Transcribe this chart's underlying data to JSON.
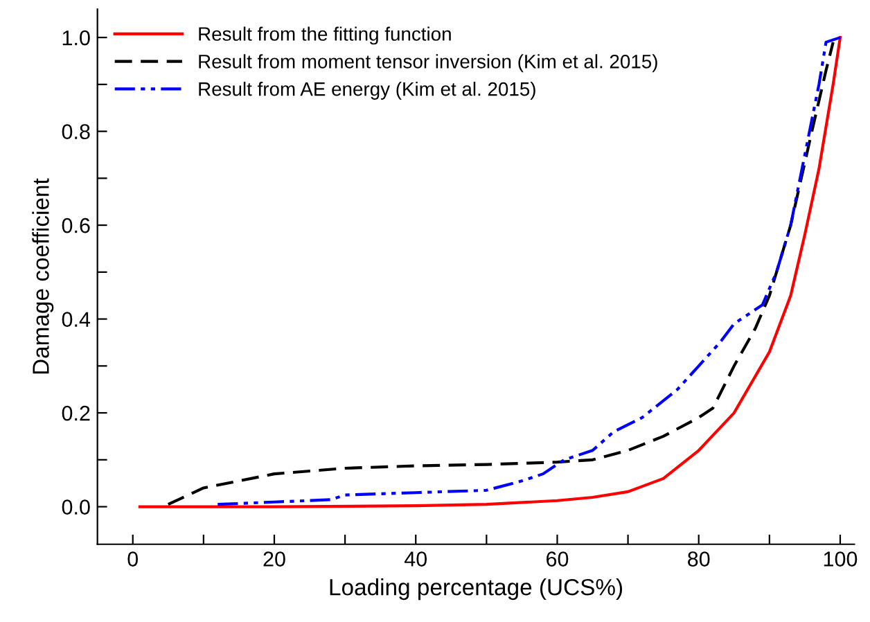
{
  "chart_data": {
    "type": "line",
    "xlabel": "Loading percentage (UCS%)",
    "ylabel": "Damage coefficient",
    "xlim": [
      -5,
      102
    ],
    "ylim": [
      -0.08,
      1.06
    ],
    "xticks": [
      0,
      {
        "value": 10,
        "label": null
      },
      20,
      {
        "value": 30,
        "label": null
      },
      40,
      {
        "value": 50,
        "label": null
      },
      60,
      {
        "value": 70,
        "label": null
      },
      80,
      {
        "value": 90,
        "label": null
      },
      100
    ],
    "yticks": [
      {
        "value": 0,
        "label": "0.0"
      },
      {
        "value": 0.1,
        "label": null
      },
      {
        "value": 0.2,
        "label": "0.2"
      },
      {
        "value": 0.3,
        "label": null
      },
      {
        "value": 0.4,
        "label": "0.4"
      },
      {
        "value": 0.5,
        "label": null
      },
      {
        "value": 0.6,
        "label": "0.6"
      },
      {
        "value": 0.7,
        "label": null
      },
      {
        "value": 0.8,
        "label": "0.8"
      },
      {
        "value": 0.9,
        "label": null
      },
      {
        "value": 1.0,
        "label": "1.0"
      }
    ],
    "grid": false,
    "legend": "top left",
    "series": [
      {
        "name": "Result from the fitting function",
        "color": "#ff0000",
        "line_style": "solid",
        "x": [
          1,
          20,
          40,
          50,
          60,
          65,
          70,
          75,
          80,
          85,
          90,
          93,
          95,
          97,
          99,
          100
        ],
        "values": [
          0,
          0,
          0.002,
          0.005,
          0.013,
          0.02,
          0.032,
          0.06,
          0.12,
          0.2,
          0.33,
          0.45,
          0.58,
          0.72,
          0.9,
          1.0
        ]
      },
      {
        "name": "Result from moment tensor inversion (Kim et al. 2015)",
        "color": "#000000",
        "line_style": "dashed",
        "x": [
          5,
          10,
          20,
          30,
          40,
          50,
          60,
          65,
          70,
          75,
          80,
          82,
          85,
          88,
          90,
          93,
          96,
          98,
          99
        ],
        "values": [
          0.005,
          0.04,
          0.07,
          0.082,
          0.087,
          0.09,
          0.095,
          0.1,
          0.12,
          0.15,
          0.19,
          0.21,
          0.3,
          0.38,
          0.45,
          0.6,
          0.8,
          0.93,
          0.99
        ]
      },
      {
        "name": "Result from AE energy (Kim et al. 2015)",
        "color": "#0000ff",
        "line_style": "dashdot",
        "x": [
          12,
          20,
          28,
          30,
          40,
          50,
          55,
          58,
          61,
          65,
          68,
          72,
          77,
          80,
          83,
          85,
          89,
          91,
          93,
          95,
          97,
          98,
          100
        ],
        "values": [
          0.005,
          0.01,
          0.015,
          0.025,
          0.03,
          0.035,
          0.055,
          0.07,
          0.1,
          0.12,
          0.16,
          0.19,
          0.25,
          0.3,
          0.35,
          0.39,
          0.43,
          0.5,
          0.6,
          0.75,
          0.9,
          0.99,
          1.0
        ]
      }
    ]
  }
}
